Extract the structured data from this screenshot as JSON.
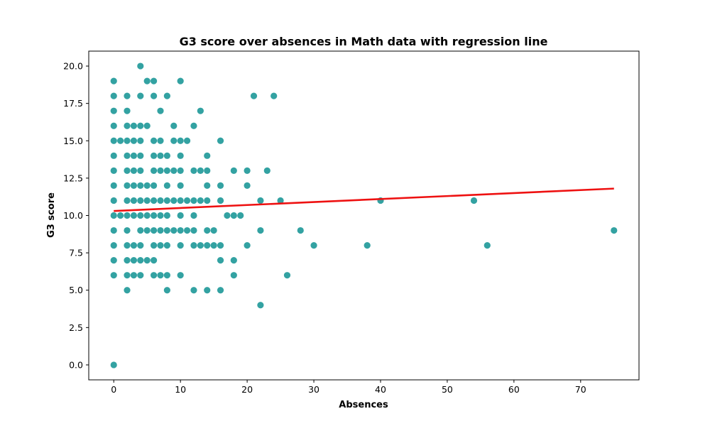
{
  "chart_data": {
    "type": "scatter",
    "title": "G3 score over absences in Math data with regression line",
    "xlabel": "Absences",
    "ylabel": "G3 score",
    "xlim": [
      -3.75,
      78.75
    ],
    "ylim": [
      -1.0,
      21.0
    ],
    "x_ticks": [
      0,
      10,
      20,
      30,
      40,
      50,
      60,
      70
    ],
    "x_tick_labels": [
      "0",
      "10",
      "20",
      "30",
      "40",
      "50",
      "60",
      "70"
    ],
    "y_ticks": [
      0,
      2.5,
      5,
      7.5,
      10,
      12.5,
      15,
      17.5,
      20
    ],
    "y_tick_labels": [
      "0.0",
      "2.5",
      "5.0",
      "7.5",
      "10.0",
      "12.5",
      "15.0",
      "17.5",
      "20.0"
    ],
    "grid": false,
    "point_color": "#008b8b",
    "line_color": "#ee1111",
    "series": [
      {
        "name": "data",
        "points": [
          [
            0,
            0
          ],
          [
            0,
            6
          ],
          [
            0,
            7
          ],
          [
            0,
            8
          ],
          [
            0,
            9
          ],
          [
            0,
            10
          ],
          [
            0,
            11
          ],
          [
            0,
            12
          ],
          [
            0,
            13
          ],
          [
            0,
            14
          ],
          [
            0,
            15
          ],
          [
            0,
            16
          ],
          [
            0,
            17
          ],
          [
            0,
            18
          ],
          [
            0,
            19
          ],
          [
            1,
            15
          ],
          [
            1,
            10
          ],
          [
            2,
            5
          ],
          [
            2,
            6
          ],
          [
            2,
            7
          ],
          [
            2,
            8
          ],
          [
            2,
            9
          ],
          [
            2,
            10
          ],
          [
            2,
            11
          ],
          [
            2,
            12
          ],
          [
            2,
            13
          ],
          [
            2,
            14
          ],
          [
            2,
            15
          ],
          [
            2,
            16
          ],
          [
            2,
            17
          ],
          [
            2,
            18
          ],
          [
            3,
            6
          ],
          [
            3,
            7
          ],
          [
            3,
            8
          ],
          [
            3,
            10
          ],
          [
            3,
            11
          ],
          [
            3,
            12
          ],
          [
            3,
            13
          ],
          [
            3,
            14
          ],
          [
            3,
            15
          ],
          [
            3,
            16
          ],
          [
            4,
            6
          ],
          [
            4,
            7
          ],
          [
            4,
            8
          ],
          [
            4,
            9
          ],
          [
            4,
            10
          ],
          [
            4,
            11
          ],
          [
            4,
            12
          ],
          [
            4,
            13
          ],
          [
            4,
            14
          ],
          [
            4,
            15
          ],
          [
            4,
            16
          ],
          [
            4,
            18
          ],
          [
            4,
            20
          ],
          [
            5,
            7
          ],
          [
            5,
            9
          ],
          [
            5,
            10
          ],
          [
            5,
            11
          ],
          [
            5,
            12
          ],
          [
            5,
            16
          ],
          [
            5,
            19
          ],
          [
            6,
            6
          ],
          [
            6,
            7
          ],
          [
            6,
            8
          ],
          [
            6,
            9
          ],
          [
            6,
            10
          ],
          [
            6,
            11
          ],
          [
            6,
            12
          ],
          [
            6,
            13
          ],
          [
            6,
            14
          ],
          [
            6,
            15
          ],
          [
            6,
            18
          ],
          [
            6,
            19
          ],
          [
            7,
            6
          ],
          [
            7,
            8
          ],
          [
            7,
            9
          ],
          [
            7,
            10
          ],
          [
            7,
            11
          ],
          [
            7,
            13
          ],
          [
            7,
            14
          ],
          [
            7,
            15
          ],
          [
            7,
            17
          ],
          [
            8,
            5
          ],
          [
            8,
            6
          ],
          [
            8,
            8
          ],
          [
            8,
            9
          ],
          [
            8,
            10
          ],
          [
            8,
            11
          ],
          [
            8,
            12
          ],
          [
            8,
            13
          ],
          [
            8,
            14
          ],
          [
            8,
            18
          ],
          [
            9,
            9
          ],
          [
            9,
            11
          ],
          [
            9,
            13
          ],
          [
            9,
            15
          ],
          [
            9,
            16
          ],
          [
            10,
            6
          ],
          [
            10,
            8
          ],
          [
            10,
            9
          ],
          [
            10,
            10
          ],
          [
            10,
            11
          ],
          [
            10,
            12
          ],
          [
            10,
            13
          ],
          [
            10,
            14
          ],
          [
            10,
            15
          ],
          [
            10,
            19
          ],
          [
            11,
            9
          ],
          [
            11,
            11
          ],
          [
            11,
            15
          ],
          [
            12,
            5
          ],
          [
            12,
            8
          ],
          [
            12,
            9
          ],
          [
            12,
            10
          ],
          [
            12,
            11
          ],
          [
            12,
            13
          ],
          [
            12,
            16
          ],
          [
            13,
            8
          ],
          [
            13,
            11
          ],
          [
            13,
            13
          ],
          [
            13,
            17
          ],
          [
            14,
            5
          ],
          [
            14,
            8
          ],
          [
            14,
            9
          ],
          [
            14,
            11
          ],
          [
            14,
            12
          ],
          [
            14,
            13
          ],
          [
            14,
            14
          ],
          [
            15,
            8
          ],
          [
            15,
            9
          ],
          [
            16,
            5
          ],
          [
            16,
            7
          ],
          [
            16,
            8
          ],
          [
            16,
            11
          ],
          [
            16,
            12
          ],
          [
            16,
            15
          ],
          [
            17,
            10
          ],
          [
            18,
            6
          ],
          [
            18,
            7
          ],
          [
            18,
            10
          ],
          [
            18,
            13
          ],
          [
            19,
            10
          ],
          [
            20,
            8
          ],
          [
            20,
            12
          ],
          [
            20,
            13
          ],
          [
            21,
            18
          ],
          [
            22,
            4
          ],
          [
            22,
            9
          ],
          [
            22,
            11
          ],
          [
            23,
            13
          ],
          [
            24,
            18
          ],
          [
            25,
            11
          ],
          [
            26,
            6
          ],
          [
            28,
            9
          ],
          [
            30,
            8
          ],
          [
            38,
            8
          ],
          [
            40,
            11
          ],
          [
            54,
            11
          ],
          [
            56,
            8
          ],
          [
            75,
            9
          ]
        ]
      }
    ],
    "regression": {
      "x": [
        0,
        75
      ],
      "y": [
        10.3,
        11.8
      ]
    }
  }
}
